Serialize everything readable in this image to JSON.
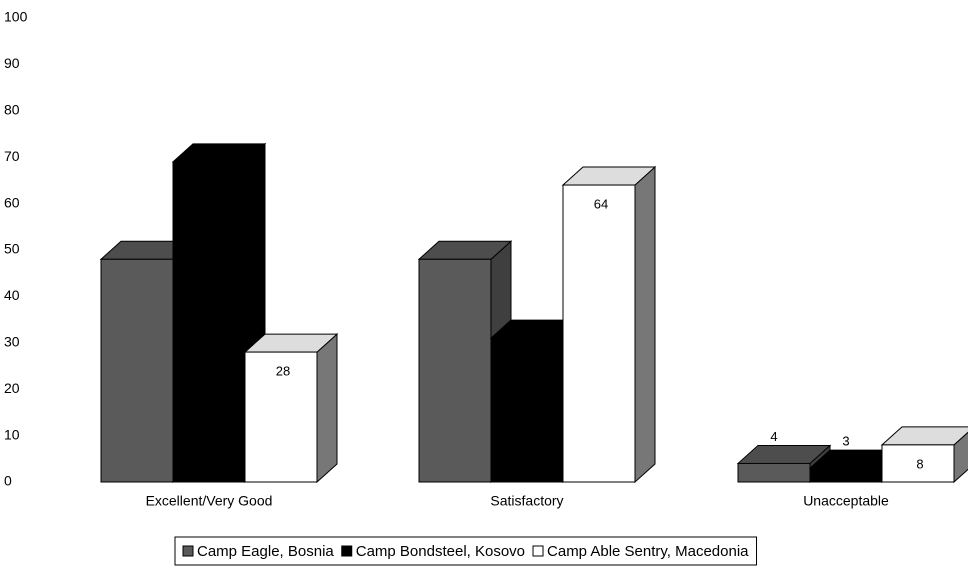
{
  "chart_data": {
    "type": "bar3d",
    "categories": [
      "Excellent/Very Good",
      "Satisfactory",
      "Unacceptable"
    ],
    "series": [
      {
        "name": "Camp Eagle, Bosnia",
        "color": "#5a5a5a",
        "values": [
          48,
          48,
          4
        ],
        "value_labels": [
          null,
          null,
          "4"
        ]
      },
      {
        "name": "Camp Bondsteel, Kosovo",
        "color": "#000000",
        "values": [
          69,
          31,
          3
        ],
        "value_labels": [
          null,
          null,
          "3"
        ]
      },
      {
        "name": "Camp Able Sentry, Macedonia",
        "color": "#ffffff",
        "values": [
          28,
          64,
          8
        ],
        "value_labels": [
          "28",
          "64",
          "8"
        ]
      }
    ],
    "ylim": [
      0,
      100
    ],
    "yticks": [
      0,
      10,
      20,
      30,
      40,
      50,
      60,
      70,
      80,
      90,
      100
    ],
    "grid": false,
    "legend": "bottom"
  }
}
